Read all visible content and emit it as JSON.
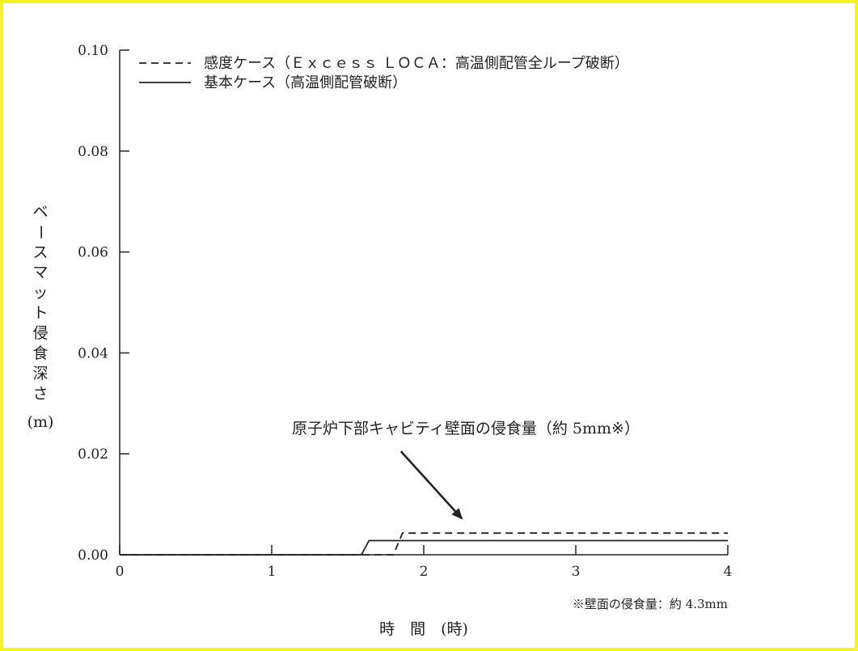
{
  "chart_data": {
    "type": "line",
    "xlabel": "時　間　(時)",
    "ylabel": "ベースマット侵食深さ",
    "ylabel_unit": "(m)",
    "xlim": [
      0,
      4
    ],
    "ylim": [
      0,
      0.1
    ],
    "x_ticks": [
      0,
      1,
      2,
      3,
      4
    ],
    "x_tick_labels": [
      "0",
      "1",
      "2",
      "3",
      "4"
    ],
    "y_ticks": [
      0,
      0.02,
      0.04,
      0.06,
      0.08,
      0.1
    ],
    "y_tick_labels": [
      "0.00",
      "0.02",
      "0.04",
      "0.06",
      "0.08",
      "0.10"
    ],
    "grid": false,
    "legend_position": "top",
    "series": [
      {
        "name": "感度ケース（Ｅｘｃｅｓｓ ＬＯＣＡ：高温側配管全ループ破断）",
        "style": "dashed",
        "x": [
          0,
          1.8,
          1.86,
          4
        ],
        "y": [
          0,
          0,
          0.0043,
          0.0043
        ]
      },
      {
        "name": "基本ケース（高温側配管破断）",
        "style": "solid",
        "x": [
          0,
          1.59,
          1.64,
          4
        ],
        "y": [
          0,
          0,
          0.0028,
          0.0028
        ]
      }
    ],
    "annotations": [
      {
        "text": "原子炉下部キャビティ壁面の侵食量（約 5mm※）",
        "arrow_from": [
          1.85,
          0.0205
        ],
        "arrow_to": [
          2.25,
          0.0072
        ]
      }
    ],
    "footnote": "※壁面の侵食量：約 4.3mm"
  }
}
